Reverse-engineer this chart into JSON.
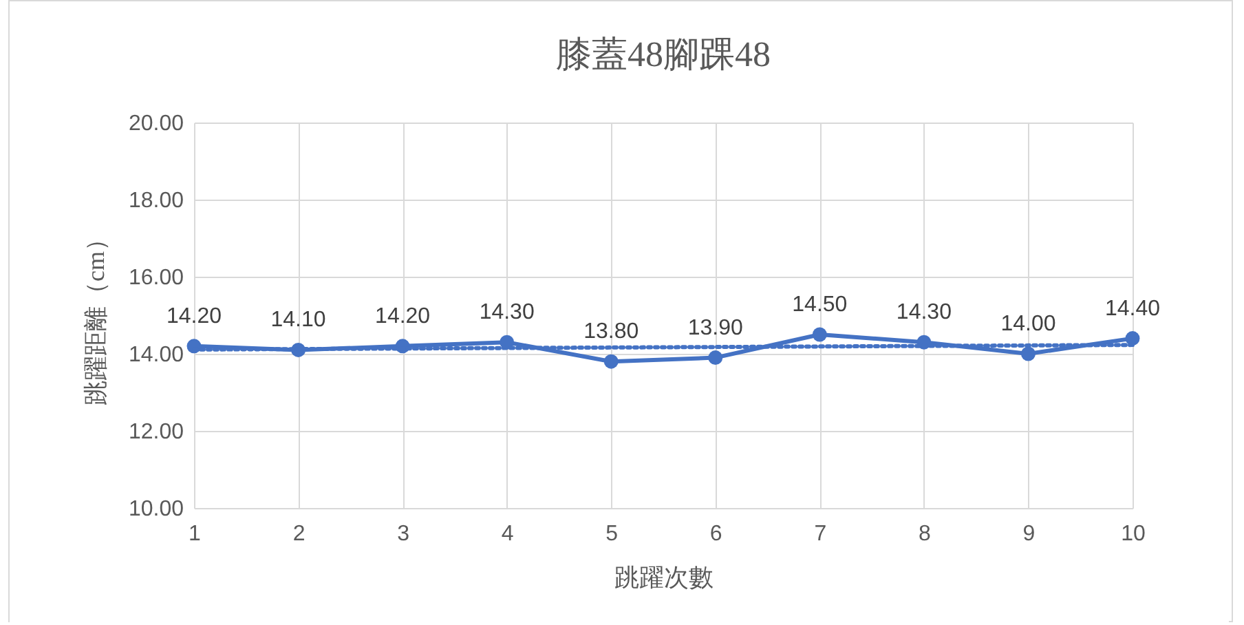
{
  "chart_data": {
    "type": "line",
    "title": "膝蓋48腳踝48",
    "xlabel": "跳躍次數",
    "ylabel": "跳躍距離（cm）",
    "categories": [
      "1",
      "2",
      "3",
      "4",
      "5",
      "6",
      "7",
      "8",
      "9",
      "10"
    ],
    "series": [
      {
        "color": "#4472c4",
        "marker": "circle",
        "line_style": "solid",
        "values": [
          14.2,
          14.1,
          14.2,
          14.3,
          13.8,
          13.9,
          14.5,
          14.3,
          14.0,
          14.4
        ],
        "value_labels": [
          "14.20",
          "14.10",
          "14.20",
          "14.30",
          "13.80",
          "13.90",
          "14.50",
          "14.30",
          "14.00",
          "14.40"
        ]
      },
      {
        "type": "line",
        "color": "#4472c4",
        "marker": "none",
        "line_style": "dotted",
        "x": [
          "1",
          "10"
        ],
        "values": [
          14.11,
          14.23
        ]
      }
    ],
    "ylim": [
      10,
      20
    ],
    "yticks": [
      {
        "value": 10,
        "label": "10.00"
      },
      {
        "value": 12,
        "label": "12.00"
      },
      {
        "value": 14,
        "label": "14.00"
      },
      {
        "value": 16,
        "label": "16.00"
      },
      {
        "value": 18,
        "label": "18.00"
      },
      {
        "value": 20,
        "label": "20.00"
      }
    ],
    "grid": true
  }
}
